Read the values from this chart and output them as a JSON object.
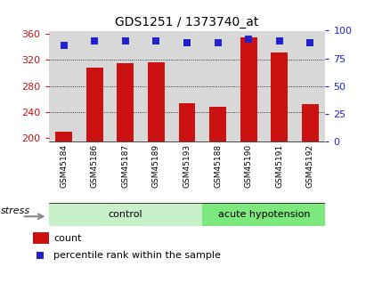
{
  "title": "GDS1251 / 1373740_at",
  "samples": [
    "GSM45184",
    "GSM45186",
    "GSM45187",
    "GSM45189",
    "GSM45193",
    "GSM45188",
    "GSM45190",
    "GSM45191",
    "GSM45192"
  ],
  "counts": [
    210,
    308,
    315,
    316,
    254,
    248,
    355,
    332,
    252
  ],
  "percentiles": [
    87,
    91,
    91,
    91,
    89,
    89,
    92,
    91,
    89
  ],
  "groups": [
    "control",
    "control",
    "control",
    "control",
    "control",
    "acute hypotension",
    "acute hypotension",
    "acute hypotension",
    "acute hypotension"
  ],
  "group_colors": {
    "control": "#c8f0c8",
    "acute hypotension": "#7de87d"
  },
  "bar_color": "#cc1111",
  "dot_color": "#2222cc",
  "ylim_left": [
    195,
    365
  ],
  "ylim_right": [
    0,
    100
  ],
  "yticks_left": [
    200,
    240,
    280,
    320,
    360
  ],
  "yticks_right": [
    0,
    25,
    50,
    75,
    100
  ],
  "left_tick_color": "#cc1111",
  "right_tick_color": "#2222cc",
  "background_color": "#ffffff",
  "plot_bg_color": "#d8d8d8",
  "stress_label": "stress",
  "legend_count": "count",
  "legend_percentile": "percentile rank within the sample",
  "grid_lines": [
    240,
    280,
    320
  ]
}
